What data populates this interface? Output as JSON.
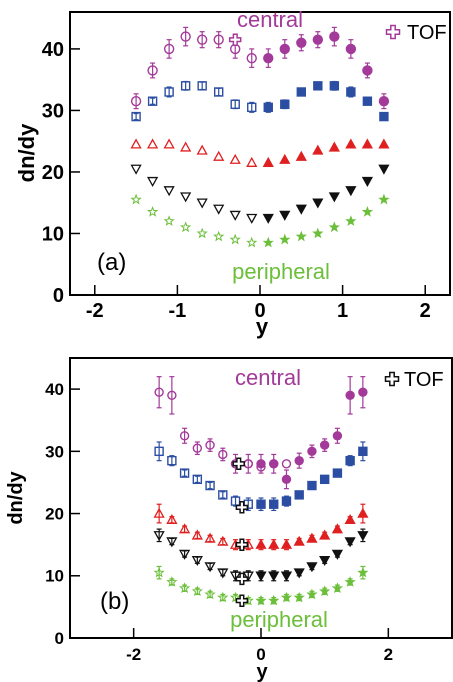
{
  "chart_data": [
    {
      "type": "scatter",
      "panel_label": "(a)",
      "xlabel": "y",
      "ylabel": "dn/dy",
      "xlim": [
        -2.3,
        2.3
      ],
      "ylim": [
        0,
        46
      ],
      "xticks": [
        -2,
        -1,
        0,
        1,
        2
      ],
      "yticks": [
        0,
        10,
        20,
        30,
        40
      ],
      "xtick_labels": [
        "-2",
        "-1",
        "0",
        "1",
        "2"
      ],
      "ytick_labels": [
        "0",
        "10",
        "20",
        "30",
        "40"
      ],
      "grid": false,
      "legend_position": "top-right",
      "annotations": [
        {
          "key": "central",
          "text": "central",
          "color": "#a33a9a"
        },
        {
          "key": "peripheral",
          "text": "peripheral",
          "color": "#6cbf3a"
        }
      ],
      "legend": [
        {
          "key": "tof",
          "label": "TOF",
          "marker": "cross-open",
          "color": "#a33a9a"
        }
      ],
      "series": [
        {
          "marker": "circle",
          "color": "#a33a9a",
          "size": 9,
          "x": [
            -1.5,
            -1.3,
            -1.1,
            -0.9,
            -0.7,
            -0.5,
            -0.3,
            -0.1,
            0.1,
            0.3,
            0.5,
            0.7,
            0.9,
            1.1,
            1.3,
            1.5
          ],
          "y": [
            31.5,
            36.5,
            40.0,
            42.0,
            41.5,
            41.5,
            40.0,
            38.5,
            38.5,
            40.0,
            41.0,
            41.5,
            42.0,
            40.0,
            36.5,
            31.5
          ],
          "err": [
            1.2,
            1.2,
            1.5,
            1.5,
            1.3,
            1.3,
            1.5,
            1.5,
            1.5,
            1.5,
            1.3,
            1.3,
            1.5,
            1.5,
            1.2,
            1.2
          ]
        },
        {
          "marker": "square",
          "color": "#2b4ea2",
          "size": 8,
          "x": [
            -1.5,
            -1.3,
            -1.1,
            -0.9,
            -0.7,
            -0.5,
            -0.3,
            -0.1,
            0.1,
            0.3,
            0.5,
            0.7,
            0.9,
            1.1,
            1.3,
            1.5
          ],
          "y": [
            29.0,
            31.5,
            33.0,
            34.0,
            34.0,
            33.0,
            31.0,
            30.5,
            30.5,
            31.0,
            33.0,
            34.0,
            34.0,
            33.0,
            31.5,
            29.0
          ],
          "err": [
            0.5,
            0.5,
            0.8,
            0.7,
            0.6,
            0.6,
            0.7,
            0.8,
            0.8,
            0.7,
            0.6,
            0.6,
            0.7,
            0.8,
            0.5,
            0.5
          ]
        },
        {
          "marker": "triangle-up",
          "color": "#e02020",
          "size": 9,
          "x": [
            -1.5,
            -1.3,
            -1.1,
            -0.9,
            -0.7,
            -0.5,
            -0.3,
            -0.1,
            0.1,
            0.3,
            0.5,
            0.7,
            0.9,
            1.1,
            1.3,
            1.5
          ],
          "y": [
            24.5,
            24.5,
            24.5,
            24.0,
            23.5,
            22.5,
            22.0,
            21.5,
            21.5,
            22.0,
            22.5,
            23.5,
            24.0,
            24.5,
            24.5,
            24.5
          ],
          "err": [
            0,
            0,
            0,
            0,
            0,
            0,
            0,
            0,
            0,
            0,
            0,
            0,
            0,
            0,
            0,
            0
          ]
        },
        {
          "marker": "triangle-down",
          "color": "#111111",
          "size": 9,
          "x": [
            -1.5,
            -1.3,
            -1.1,
            -0.9,
            -0.7,
            -0.5,
            -0.3,
            -0.1,
            0.1,
            0.3,
            0.5,
            0.7,
            0.9,
            1.1,
            1.3,
            1.5
          ],
          "y": [
            20.5,
            18.5,
            17.0,
            16.0,
            15.0,
            14.0,
            13.0,
            12.5,
            12.5,
            13.0,
            14.0,
            15.0,
            16.0,
            17.0,
            18.5,
            20.5
          ],
          "err": [
            0,
            0,
            0,
            0,
            0,
            0,
            0,
            0,
            0,
            0,
            0,
            0,
            0,
            0,
            0,
            0
          ]
        },
        {
          "marker": "star",
          "color": "#6cbf3a",
          "size": 9,
          "x": [
            -1.5,
            -1.3,
            -1.1,
            -0.9,
            -0.7,
            -0.5,
            -0.3,
            -0.1,
            0.1,
            0.3,
            0.5,
            0.7,
            0.9,
            1.1,
            1.3,
            1.5
          ],
          "y": [
            15.5,
            13.5,
            12.0,
            11.0,
            10.0,
            9.5,
            9.0,
            8.5,
            8.5,
            9.0,
            9.5,
            10.0,
            11.0,
            12.0,
            13.5,
            15.5
          ],
          "err": [
            0,
            0,
            0,
            0,
            0,
            0,
            0,
            0,
            0,
            0,
            0,
            0,
            0,
            0,
            0,
            0
          ]
        },
        {
          "marker": "cross-open",
          "color": "#a33a9a",
          "size": 11,
          "x": [
            -0.3
          ],
          "y": [
            41.5
          ],
          "err": [
            0
          ]
        }
      ]
    },
    {
      "type": "scatter",
      "panel_label": "(b)",
      "xlabel": "y",
      "ylabel": "dn/dy",
      "xlim": [
        -3,
        3
      ],
      "ylim": [
        0,
        45
      ],
      "xticks": [
        -2,
        0,
        2
      ],
      "yticks": [
        0,
        10,
        20,
        30,
        40
      ],
      "xtick_labels": [
        "-2",
        "0",
        "2"
      ],
      "ytick_labels": [
        "0",
        "10",
        "20",
        "30",
        "40"
      ],
      "grid": false,
      "legend_position": "top-right",
      "annotations": [
        {
          "key": "central",
          "text": "central",
          "color": "#a33a9a"
        },
        {
          "key": "peripheral",
          "text": "peripheral",
          "color": "#6cbf3a"
        }
      ],
      "legend": [
        {
          "key": "tof",
          "label": "TOF",
          "marker": "cross-open",
          "color": "#111111"
        }
      ],
      "series": [
        {
          "marker": "circle",
          "color": "#a33a9a",
          "size": 8,
          "x": [
            -1.6,
            -1.4,
            -1.2,
            -1.0,
            -0.8,
            -0.6,
            -0.4,
            -0.2,
            0.0,
            0.2,
            0.4,
            0.6,
            0.8,
            1.0,
            1.2,
            1.4,
            1.6
          ],
          "y": [
            39.5,
            39.0,
            32.5,
            30.5,
            31.0,
            29.5,
            28.0,
            28.0,
            28.0,
            28.0,
            25.5,
            28.5,
            30.0,
            31.0,
            32.5,
            39.0,
            39.5
          ],
          "err": [
            2.5,
            3.0,
            1.2,
            1.0,
            1.0,
            1.0,
            1.5,
            1.5,
            1.5,
            1.5,
            1.5,
            1.2,
            1.0,
            1.0,
            1.2,
            3.0,
            2.5
          ]
        },
        {
          "marker": "square",
          "color": "#2b4ea2",
          "size": 8,
          "x": [
            -1.6,
            -1.4,
            -1.2,
            -1.0,
            -0.8,
            -0.6,
            -0.4,
            -0.2,
            0.0,
            0.2,
            0.4,
            0.6,
            0.8,
            1.0,
            1.2,
            1.4,
            1.6
          ],
          "y": [
            30.0,
            28.5,
            26.5,
            25.5,
            24.5,
            23.0,
            22.0,
            21.5,
            21.5,
            21.5,
            22.0,
            23.0,
            24.5,
            25.5,
            26.5,
            28.5,
            30.0
          ],
          "err": [
            1.5,
            0.8,
            0.5,
            0.5,
            0.5,
            0.5,
            0.8,
            1.0,
            1.0,
            1.0,
            0.8,
            0.5,
            0.5,
            0.5,
            0.5,
            0.8,
            1.5
          ]
        },
        {
          "marker": "triangle-up",
          "color": "#e02020",
          "size": 9,
          "x": [
            -1.6,
            -1.4,
            -1.2,
            -1.0,
            -0.8,
            -0.6,
            -0.4,
            -0.2,
            0.0,
            0.2,
            0.4,
            0.6,
            0.8,
            1.0,
            1.2,
            1.4,
            1.6
          ],
          "y": [
            20.0,
            19.0,
            17.5,
            16.5,
            16.0,
            15.5,
            15.0,
            15.0,
            15.0,
            15.0,
            15.0,
            15.5,
            16.0,
            16.5,
            17.5,
            19.0,
            20.0
          ],
          "err": [
            1.5,
            0.5,
            0.5,
            0.5,
            0.5,
            0.5,
            0.8,
            0.8,
            0.8,
            0.8,
            0.8,
            0.5,
            0.5,
            0.5,
            0.5,
            0.5,
            1.5
          ]
        },
        {
          "marker": "triangle-down",
          "color": "#111111",
          "size": 9,
          "x": [
            -1.6,
            -1.4,
            -1.2,
            -1.0,
            -0.8,
            -0.6,
            -0.4,
            -0.2,
            0.0,
            0.2,
            0.4,
            0.6,
            0.8,
            1.0,
            1.2,
            1.4,
            1.6
          ],
          "y": [
            16.5,
            15.5,
            13.5,
            12.5,
            11.5,
            10.5,
            10.0,
            10.0,
            10.0,
            10.0,
            10.0,
            10.5,
            11.5,
            12.5,
            13.5,
            15.5,
            16.5
          ],
          "err": [
            1.0,
            0.5,
            0.5,
            0.5,
            0.5,
            0.5,
            0.8,
            0.8,
            0.8,
            0.8,
            0.8,
            0.5,
            0.5,
            0.5,
            0.5,
            0.5,
            1.0
          ]
        },
        {
          "marker": "star",
          "color": "#6cbf3a",
          "size": 9,
          "x": [
            -1.6,
            -1.4,
            -1.2,
            -1.0,
            -0.8,
            -0.6,
            -0.4,
            -0.2,
            0.0,
            0.2,
            0.4,
            0.6,
            0.8,
            1.0,
            1.2,
            1.4,
            1.6
          ],
          "y": [
            10.5,
            9.0,
            8.0,
            7.5,
            7.0,
            6.5,
            6.5,
            6.0,
            6.0,
            6.0,
            6.5,
            6.5,
            7.0,
            7.5,
            8.0,
            9.0,
            10.5
          ],
          "err": [
            1.0,
            0.5,
            0.5,
            0.5,
            0.5,
            0.5,
            0.5,
            0.5,
            0.5,
            0.5,
            0.5,
            0.5,
            0.5,
            0.5,
            0.5,
            0.5,
            1.0
          ]
        },
        {
          "marker": "circle-open",
          "color": "#a33a9a",
          "size": 8,
          "x": [
            -0.4,
            -0.2,
            0.0,
            0.2,
            0.4
          ],
          "y": [
            28.0,
            28.0,
            27.5,
            28.0,
            28.0
          ],
          "err": [
            0,
            0,
            0,
            0,
            0
          ]
        },
        {
          "marker": "cross-open",
          "color": "#111111",
          "size": 11,
          "x": [
            -0.35,
            -0.3,
            -0.3,
            -0.3,
            -0.3
          ],
          "y": [
            28.0,
            21.0,
            15.0,
            9.5,
            6.0
          ],
          "err": [
            0,
            0,
            0,
            0,
            0
          ]
        }
      ]
    }
  ]
}
